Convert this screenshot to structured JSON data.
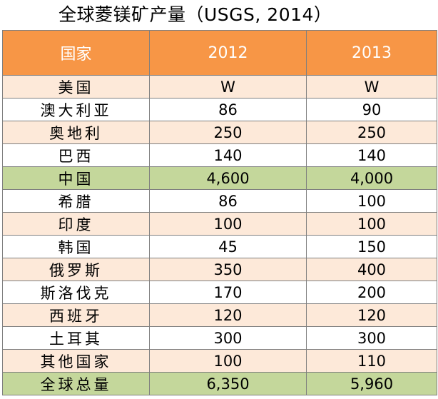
{
  "title": "全球菱镁矿产量（USGS, 2014）",
  "chart_data": {
    "type": "table",
    "title": "全球菱镁矿产量（USGS, 2014）",
    "columns": [
      "国家",
      "2012",
      "2013"
    ],
    "rows": [
      {
        "country": "美国",
        "y2012": "W",
        "y2013": "W"
      },
      {
        "country": "澳大利亚",
        "y2012": "86",
        "y2013": "90"
      },
      {
        "country": "奥地利",
        "y2012": "250",
        "y2013": "250"
      },
      {
        "country": "巴西",
        "y2012": "140",
        "y2013": "140"
      },
      {
        "country": "中国",
        "y2012": "4,600",
        "y2013": "4,000"
      },
      {
        "country": "希腊",
        "y2012": "86",
        "y2013": "100"
      },
      {
        "country": "印度",
        "y2012": "100",
        "y2013": "100"
      },
      {
        "country": "韩国",
        "y2012": "45",
        "y2013": "150"
      },
      {
        "country": "俄罗斯",
        "y2012": "350",
        "y2013": "400"
      },
      {
        "country": "斯洛伐克",
        "y2012": "170",
        "y2013": "200"
      },
      {
        "country": "西班牙",
        "y2012": "120",
        "y2013": "120"
      },
      {
        "country": "土耳其",
        "y2012": "300",
        "y2013": "300"
      },
      {
        "country": "其他国家",
        "y2012": "100",
        "y2013": "110"
      },
      {
        "country": "全球总量",
        "y2012": "6,350",
        "y2013": "5,960"
      }
    ]
  },
  "colors": {
    "header": "#f79646",
    "header_text": "#ffffff",
    "alt_row": "#fde9d9",
    "highlight_row": "#c4d79b",
    "plain_row": "#ffffff",
    "border": "#7f7f7f"
  }
}
